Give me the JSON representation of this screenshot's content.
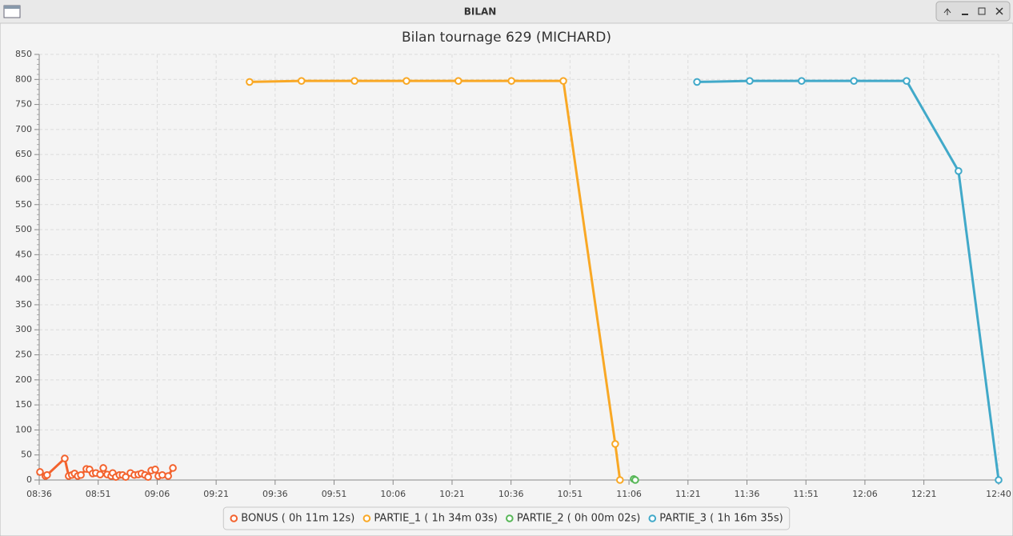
{
  "window": {
    "title": "BILAN"
  },
  "chart_data": {
    "type": "line",
    "title": "Bilan tournage 629 (MICHARD)",
    "xlim": [
      516,
      760
    ],
    "xticks": [
      {
        "value": 516,
        "label": "08:36"
      },
      {
        "value": 531,
        "label": "08:51"
      },
      {
        "value": 546,
        "label": "09:06"
      },
      {
        "value": 561,
        "label": "09:21"
      },
      {
        "value": 576,
        "label": "09:36"
      },
      {
        "value": 591,
        "label": "09:51"
      },
      {
        "value": 606,
        "label": "10:06"
      },
      {
        "value": 621,
        "label": "10:21"
      },
      {
        "value": 636,
        "label": "10:36"
      },
      {
        "value": 651,
        "label": "10:51"
      },
      {
        "value": 666,
        "label": "11:06"
      },
      {
        "value": 681,
        "label": "11:21"
      },
      {
        "value": 696,
        "label": "11:36"
      },
      {
        "value": 711,
        "label": "11:51"
      },
      {
        "value": 726,
        "label": "12:06"
      },
      {
        "value": 741,
        "label": "12:21"
      },
      {
        "value": 760,
        "label": "12:40"
      }
    ],
    "ylim": [
      0,
      850
    ],
    "yticks": [
      0,
      50,
      100,
      150,
      200,
      250,
      300,
      350,
      400,
      450,
      500,
      550,
      600,
      650,
      700,
      750,
      800,
      850
    ],
    "grid": true,
    "series": [
      {
        "name": "BONUS ( 0h 11m 12s)",
        "color": "#f3622d",
        "x": [
          516.2,
          517.6,
          518.0,
          522.5,
          523.5,
          524.3,
          525.0,
          525.8,
          526.6,
          528.0,
          528.8,
          529.6,
          530.4,
          531.5,
          532.3,
          533.3,
          534.3,
          534.7,
          535.5,
          536.4,
          537.2,
          538.0,
          539.2,
          540.2,
          541.2,
          542.0,
          542.9,
          543.7,
          544.5,
          545.5,
          546.3,
          547.3,
          548.8,
          550.0
        ],
        "values": [
          16,
          8,
          10,
          43,
          8,
          10,
          13,
          8,
          10,
          22,
          21,
          13,
          14,
          11,
          24,
          11,
          8,
          14,
          6,
          10,
          10,
          6,
          14,
          10,
          11,
          13,
          10,
          6,
          19,
          21,
          8,
          10,
          8,
          24
        ]
      },
      {
        "name": "PARTIE_1 ( 1h 34m 03s)",
        "color": "#f9a825",
        "x": [
          569.5,
          582.7,
          596.2,
          609.4,
          622.6,
          636.1,
          649.3,
          662.5,
          663.7
        ],
        "values": [
          795,
          797,
          797,
          797,
          797,
          797,
          797,
          72,
          0
        ]
      },
      {
        "name": "PARTIE_2 ( 0h 00m 02s)",
        "color": "#57b757",
        "x": [
          667.2,
          667.6
        ],
        "values": [
          2,
          0
        ]
      },
      {
        "name": "PARTIE_3 ( 1h 16m 35s)",
        "color": "#41a9c9",
        "x": [
          683.3,
          696.7,
          709.9,
          723.2,
          736.6,
          749.8,
          760
        ],
        "values": [
          795,
          797,
          797,
          797,
          797,
          617,
          0
        ]
      }
    ]
  }
}
